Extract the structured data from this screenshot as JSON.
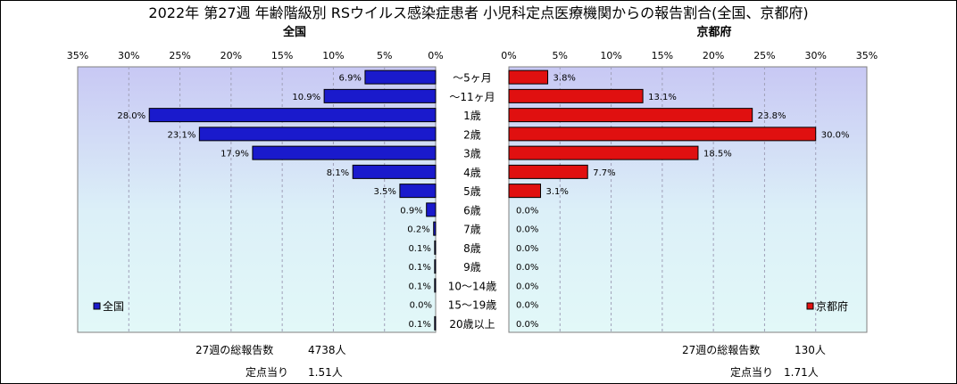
{
  "chart_data": {
    "type": "bar",
    "title": "2022年 第27週 年齢階級別 RSウイルス感染症患者 小児科定点医療機関からの報告割合(全国、京都府)",
    "categories": [
      "～5ヶ月",
      "～11ヶ月",
      "1歳",
      "2歳",
      "3歳",
      "4歳",
      "5歳",
      "6歳",
      "7歳",
      "8歳",
      "9歳",
      "10～14歳",
      "15～19歳",
      "20歳以上"
    ],
    "xlim": [
      0,
      35
    ],
    "ticks": [
      "0%",
      "5%",
      "10%",
      "15%",
      "20%",
      "25%",
      "30%",
      "35%"
    ],
    "panels": [
      {
        "side": "left",
        "subtitle": "全国",
        "legend": "全国",
        "color": "#1a1acc",
        "values": [
          6.9,
          10.9,
          28.0,
          23.1,
          17.9,
          8.1,
          3.5,
          0.9,
          0.2,
          0.1,
          0.1,
          0.1,
          0.0,
          0.1
        ],
        "labels": [
          "6.9%",
          "10.9%",
          "28.0%",
          "23.1%",
          "17.9%",
          "8.1%",
          "3.5%",
          "0.9%",
          "0.2%",
          "0.1%",
          "0.1%",
          "0.1%",
          "0.0%",
          "0.1%"
        ],
        "footer": {
          "total_label": "27週の総報告数",
          "total_value": "4738人",
          "per_label": "定点当り",
          "per_value": "1.51人"
        }
      },
      {
        "side": "right",
        "subtitle": "京都府",
        "legend": "京都府",
        "color": "#e01010",
        "values": [
          3.8,
          13.1,
          23.8,
          30.0,
          18.5,
          7.7,
          3.1,
          0.0,
          0.0,
          0.0,
          0.0,
          0.0,
          0.0,
          0.0
        ],
        "labels": [
          "3.8%",
          "13.1%",
          "23.8%",
          "30.0%",
          "18.5%",
          "7.7%",
          "3.1%",
          "0.0%",
          "0.0%",
          "0.0%",
          "0.0%",
          "0.0%",
          "0.0%",
          "0.0%"
        ],
        "footer": {
          "total_label": "27週の総報告数",
          "total_value": "130人",
          "per_label": "定点当り",
          "per_value": "1.71人"
        }
      }
    ]
  }
}
